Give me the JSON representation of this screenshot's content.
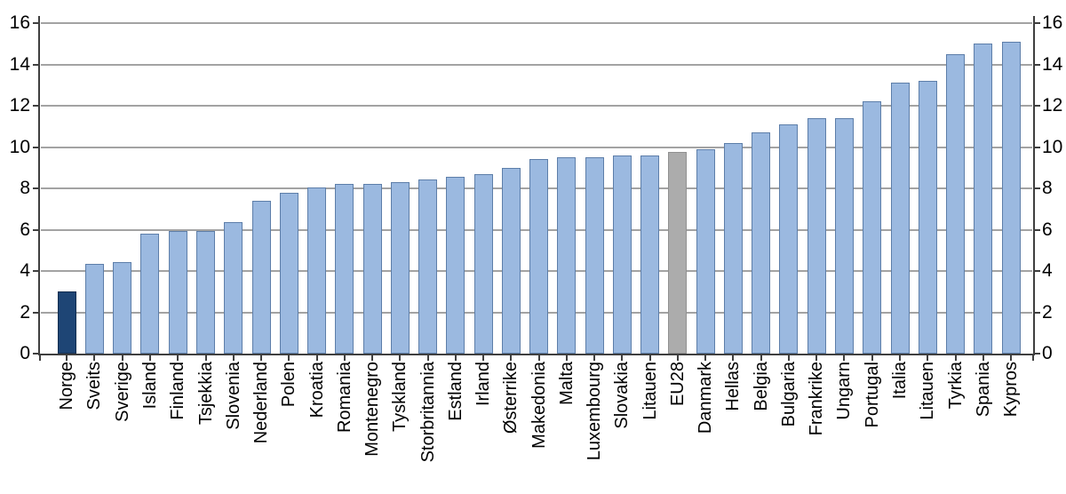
{
  "chart_data": {
    "type": "bar",
    "title": "",
    "xlabel": "",
    "ylabel": "",
    "categories": [
      "Norge",
      "Sveits",
      "Sverige",
      "Island",
      "Finland",
      "Tsjekkia",
      "Slovenia",
      "Nederland",
      "Polen",
      "Kroatia",
      "Romania",
      "Montenegro",
      "Tyskland",
      "Storbritannia",
      "Estland",
      "Irland",
      "Østerrike",
      "Makedonia",
      "Malta",
      "Luxembourg",
      "Slovakia",
      "Litauen",
      "EU28",
      "Danmark",
      "Hellas",
      "Belgia",
      "Bulgaria",
      "Frankrike",
      "Ungarn",
      "Portugal",
      "Italia",
      "Litauen",
      "Tyrkia",
      "Spania",
      "Kypros"
    ],
    "values": [
      3.0,
      4.35,
      4.45,
      5.8,
      5.95,
      5.95,
      6.35,
      7.4,
      7.8,
      8.05,
      8.2,
      8.2,
      8.3,
      8.45,
      8.55,
      8.7,
      9.0,
      9.4,
      9.5,
      9.5,
      9.6,
      9.6,
      9.75,
      9.9,
      10.2,
      10.7,
      11.1,
      11.4,
      11.4,
      12.2,
      13.1,
      13.2,
      14.5,
      15.0,
      15.1
    ],
    "ylim": [
      0,
      16
    ],
    "yticks": [
      0,
      2,
      4,
      6,
      8,
      10,
      12,
      14,
      16
    ],
    "grid": true,
    "dual_y_axis": true,
    "legend": "none",
    "special_bars": [
      {
        "index": 0,
        "category": "Norge",
        "role": "highlight"
      },
      {
        "index": 22,
        "category": "EU28",
        "role": "neutral"
      }
    ],
    "colors": {
      "bar_fill": "#9bb9e0",
      "bar_stroke": "#5d7ea9",
      "highlight_fill": "#1e4575",
      "highlight_stroke": "#132e50",
      "neutral_fill": "#acacac",
      "neutral_stroke": "#909090",
      "gridline": "#a3a3a3",
      "axis": "#3f3f3f",
      "text": "#000000"
    }
  }
}
